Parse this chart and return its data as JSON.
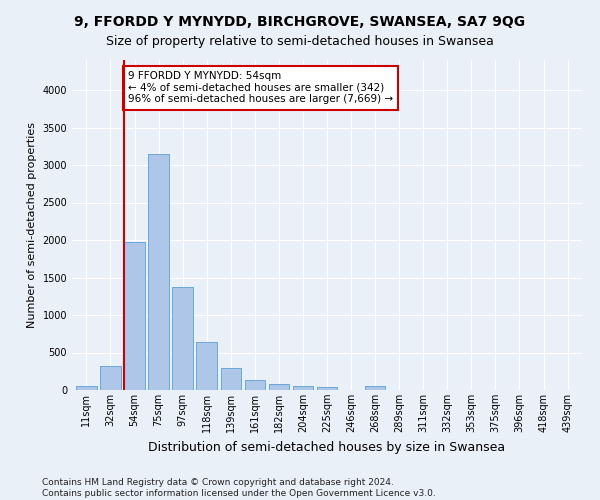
{
  "title": "9, FFORDD Y MYNYDD, BIRCHGROVE, SWANSEA, SA7 9QG",
  "subtitle": "Size of property relative to semi-detached houses in Swansea",
  "xlabel": "Distribution of semi-detached houses by size in Swansea",
  "ylabel": "Number of semi-detached properties",
  "categories": [
    "11sqm",
    "32sqm",
    "54sqm",
    "75sqm",
    "97sqm",
    "118sqm",
    "139sqm",
    "161sqm",
    "182sqm",
    "204sqm",
    "225sqm",
    "246sqm",
    "268sqm",
    "289sqm",
    "311sqm",
    "332sqm",
    "353sqm",
    "375sqm",
    "396sqm",
    "418sqm",
    "439sqm"
  ],
  "values": [
    50,
    320,
    1980,
    3150,
    1370,
    640,
    300,
    130,
    75,
    55,
    40,
    0,
    50,
    0,
    0,
    0,
    0,
    0,
    0,
    0,
    0
  ],
  "bar_color": "#aec6e8",
  "bar_edge_color": "#5a9fd4",
  "property_line_index": 2,
  "property_line_label": "9 FFORDD Y MYNYDD: 54sqm",
  "annotation_smaller": "← 4% of semi-detached houses are smaller (342)",
  "annotation_larger": "96% of semi-detached houses are larger (7,669) →",
  "annotation_box_color": "#ffffff",
  "annotation_box_edge": "#cc0000",
  "line_color": "#cc0000",
  "ylim": [
    0,
    4400
  ],
  "yticks": [
    0,
    500,
    1000,
    1500,
    2000,
    2500,
    3000,
    3500,
    4000
  ],
  "bg_color": "#eaf0f8",
  "grid_color": "#ffffff",
  "footer": "Contains HM Land Registry data © Crown copyright and database right 2024.\nContains public sector information licensed under the Open Government Licence v3.0.",
  "title_fontsize": 10,
  "subtitle_fontsize": 9,
  "ylabel_fontsize": 8,
  "xlabel_fontsize": 9,
  "tick_fontsize": 7,
  "footer_fontsize": 6.5
}
